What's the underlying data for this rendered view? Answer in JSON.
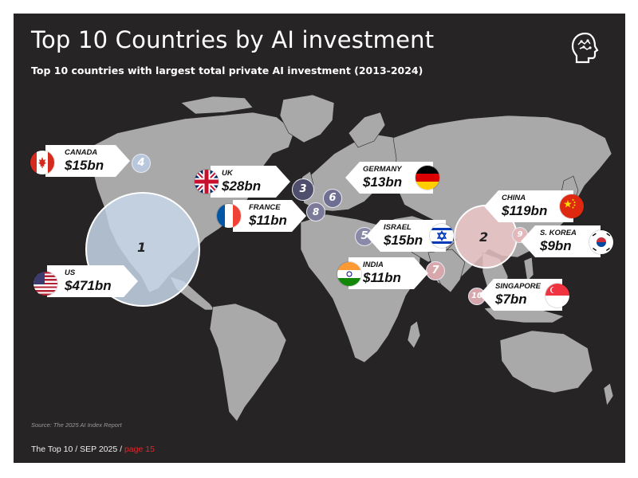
{
  "header": {
    "title": "Top 10 Countries by AI investment",
    "subtitle": "Top 10 countries with largest total private AI investment (2013-2024)",
    "logo_icon": "head-brain-icon"
  },
  "chart_data": {
    "type": "map",
    "title": "Top 10 Countries by AI investment",
    "subtitle": "Top 10 countries with largest total private AI investment (2013-2024)",
    "entries": [
      {
        "rank": "1",
        "country": "US",
        "amount": "$471bn",
        "value_bn": 471
      },
      {
        "rank": "2",
        "country": "CHINA",
        "amount": "$119bn",
        "value_bn": 119
      },
      {
        "rank": "3",
        "country": "UK",
        "amount": "$28bn",
        "value_bn": 28
      },
      {
        "rank": "4",
        "country": "CANADA",
        "amount": "$15bn",
        "value_bn": 15
      },
      {
        "rank": "5",
        "country": "ISRAEL",
        "amount": "$15bn",
        "value_bn": 15
      },
      {
        "rank": "6",
        "country": "GERMANY",
        "amount": "$13bn",
        "value_bn": 13
      },
      {
        "rank": "7",
        "country": "INDIA",
        "amount": "$11bn",
        "value_bn": 11
      },
      {
        "rank": "8",
        "country": "FRANCE",
        "amount": "$11bn",
        "value_bn": 11
      },
      {
        "rank": "9",
        "country": "S. KOREA",
        "amount": "$9bn",
        "value_bn": 9
      },
      {
        "rank": "10",
        "country": "SINGAPORE",
        "amount": "$7bn",
        "value_bn": 7
      }
    ]
  },
  "flag_icons": {
    "us": "us-flag-icon",
    "china": "china-flag-icon",
    "uk": "uk-flag-icon",
    "canada": "canada-flag-icon",
    "israel": "israel-flag-icon",
    "germany": "germany-flag-icon",
    "india": "india-flag-icon",
    "france": "france-flag-icon",
    "korea": "south-korea-flag-icon",
    "singapore": "singapore-flag-icon"
  },
  "colors": {
    "background": "#262424",
    "land": "#a9a9a9",
    "us_circle": "#c8d7ea",
    "china_circle": "#ecc5c8",
    "rank_badge": "#6f6f93",
    "page_accent": "#e0262c"
  },
  "source": "Source: The 2025 AI Index Report",
  "footer": {
    "text": "The Top 10 / SEP 2025 / ",
    "page": "page 15"
  }
}
